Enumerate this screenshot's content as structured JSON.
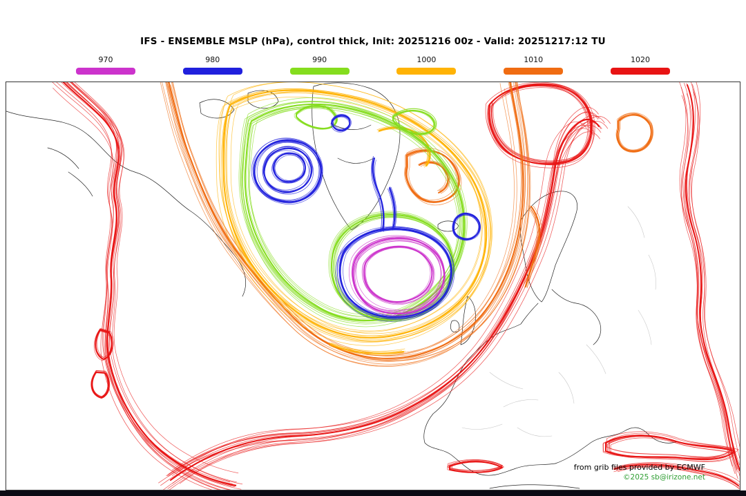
{
  "header": {
    "title": "IFS - ENSEMBLE MSLP (hPa), control thick, Init: 20251216 00z - Valid: 20251217:12 TU"
  },
  "legend": {
    "items": [
      {
        "label": "970",
        "color": "#cc33cc"
      },
      {
        "label": "980",
        "color": "#2020dd"
      },
      {
        "label": "990",
        "color": "#85dd1e"
      },
      {
        "label": "1000",
        "color": "#ffb305"
      },
      {
        "label": "1010",
        "color": "#f06c12"
      },
      {
        "label": "1020",
        "color": "#e81414"
      }
    ]
  },
  "map": {
    "credit_line1": "from grib files provided by ECMWF",
    "credit_line2": "©2025 sb@irizone.net"
  }
}
